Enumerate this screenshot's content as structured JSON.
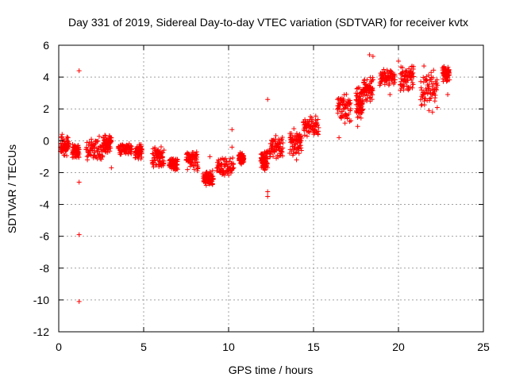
{
  "chart_data": {
    "type": "scatter",
    "title": "Day 331 of 2019, Sidereal Day-to-day VTEC variation (SDTVAR) for receiver kvtx",
    "xlabel": "GPS time / hours",
    "ylabel": "SDTVAR / TECUs",
    "xlim": [
      0,
      25
    ],
    "ylim": [
      -12,
      6
    ],
    "xticks": [
      "0",
      "5",
      "10",
      "15",
      "20",
      "25"
    ],
    "yticks": [
      "-12",
      "-10",
      "-8",
      "-6",
      "-4",
      "-2",
      "0",
      "2",
      "4",
      "6"
    ],
    "grid": true,
    "marker": "+",
    "series_color": "#ff0000",
    "clusters": [
      {
        "x": [
          0.1,
          0.6
        ],
        "y": [
          -1.0,
          0.3
        ]
      },
      {
        "x": [
          0.8,
          1.2
        ],
        "y": [
          -1.1,
          -0.2
        ]
      },
      {
        "x": [
          1.6,
          2.6
        ],
        "y": [
          -1.3,
          0.3
        ]
      },
      {
        "x": [
          2.6,
          3.1
        ],
        "y": [
          -0.9,
          0.5
        ]
      },
      {
        "x": [
          3.5,
          4.3
        ],
        "y": [
          -0.9,
          -0.1
        ]
      },
      {
        "x": [
          4.5,
          4.9
        ],
        "y": [
          -1.2,
          -0.2
        ]
      },
      {
        "x": [
          5.5,
          6.2
        ],
        "y": [
          -1.8,
          -0.3
        ]
      },
      {
        "x": [
          6.5,
          7.0
        ],
        "y": [
          -1.9,
          -1.0
        ]
      },
      {
        "x": [
          7.5,
          8.2
        ],
        "y": [
          -1.9,
          -0.5
        ]
      },
      {
        "x": [
          8.5,
          9.1
        ],
        "y": [
          -2.9,
          -1.8
        ]
      },
      {
        "x": [
          9.3,
          10.3
        ],
        "y": [
          -2.3,
          -1.0
        ]
      },
      {
        "x": [
          10.6,
          10.9
        ],
        "y": [
          -1.5,
          -0.7
        ]
      },
      {
        "x": [
          11.9,
          12.3
        ],
        "y": [
          -2.0,
          -0.5
        ]
      },
      {
        "x": [
          12.4,
          13.2
        ],
        "y": [
          -1.2,
          0.5
        ]
      },
      {
        "x": [
          13.6,
          14.3
        ],
        "y": [
          -1.0,
          0.8
        ]
      },
      {
        "x": [
          14.4,
          15.3
        ],
        "y": [
          0.2,
          1.6
        ]
      },
      {
        "x": [
          16.4,
          17.2
        ],
        "y": [
          1.0,
          3.0
        ]
      },
      {
        "x": [
          17.5,
          17.9
        ],
        "y": [
          1.2,
          3.5
        ]
      },
      {
        "x": [
          17.9,
          18.5
        ],
        "y": [
          2.4,
          4.2
        ]
      },
      {
        "x": [
          18.9,
          19.8
        ],
        "y": [
          3.4,
          4.5
        ]
      },
      {
        "x": [
          20.1,
          20.9
        ],
        "y": [
          3.0,
          4.8
        ]
      },
      {
        "x": [
          21.3,
          22.3
        ],
        "y": [
          2.0,
          4.5
        ]
      },
      {
        "x": [
          22.6,
          23.0
        ],
        "y": [
          3.6,
          4.8
        ]
      }
    ],
    "points": [
      [
        0.2,
        0.4
      ],
      [
        1.2,
        4.4
      ],
      [
        1.2,
        -2.6
      ],
      [
        1.2,
        -5.9
      ],
      [
        1.2,
        -10.1
      ],
      [
        3.1,
        -1.7
      ],
      [
        8.9,
        -1.0
      ],
      [
        10.2,
        0.7
      ],
      [
        10.2,
        -0.4
      ],
      [
        12.3,
        2.6
      ],
      [
        12.3,
        -3.2
      ],
      [
        12.3,
        -3.5
      ],
      [
        14.0,
        -1.2
      ],
      [
        16.5,
        0.2
      ],
      [
        18.3,
        5.4
      ],
      [
        18.5,
        5.3
      ],
      [
        20.0,
        5.0
      ],
      [
        21.8,
        1.9
      ],
      [
        22.9,
        2.9
      ],
      [
        19.5,
        2.9
      ],
      [
        21.5,
        4.7
      ],
      [
        22.0,
        1.8
      ],
      [
        17.6,
        0.9
      ]
    ]
  }
}
